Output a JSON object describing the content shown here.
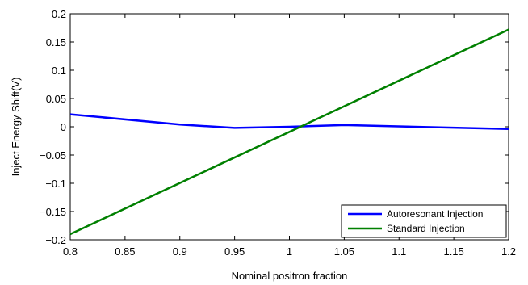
{
  "chart_data": {
    "type": "line",
    "title": "",
    "xlabel": "Nominal positron fraction",
    "ylabel": "Inject Energy Shift(V)",
    "xlim": [
      0.8,
      1.2
    ],
    "ylim": [
      -0.2,
      0.2
    ],
    "x_ticks": [
      "0.8",
      "0.85",
      "0.9",
      "0.95",
      "1",
      "1.05",
      "1.1",
      "1.15",
      "1.2"
    ],
    "y_ticks": [
      "0.2",
      "0.15",
      "0.1",
      "0.05",
      "0",
      "−0.05",
      "−0.1",
      "−0.15",
      "−0.2"
    ],
    "grid": false,
    "legend_position": "bottom-right",
    "series": [
      {
        "name": "Autoresonant Injection",
        "color": "#0000ff",
        "x": [
          0.8,
          0.9,
          0.95,
          1.0,
          1.05,
          1.2
        ],
        "y": [
          0.022,
          0.004,
          -0.002,
          0.0,
          0.003,
          -0.004
        ]
      },
      {
        "name": "Standard Injection",
        "color": "#008000",
        "x": [
          0.8,
          1.2
        ],
        "y": [
          -0.19,
          0.172
        ]
      }
    ]
  }
}
